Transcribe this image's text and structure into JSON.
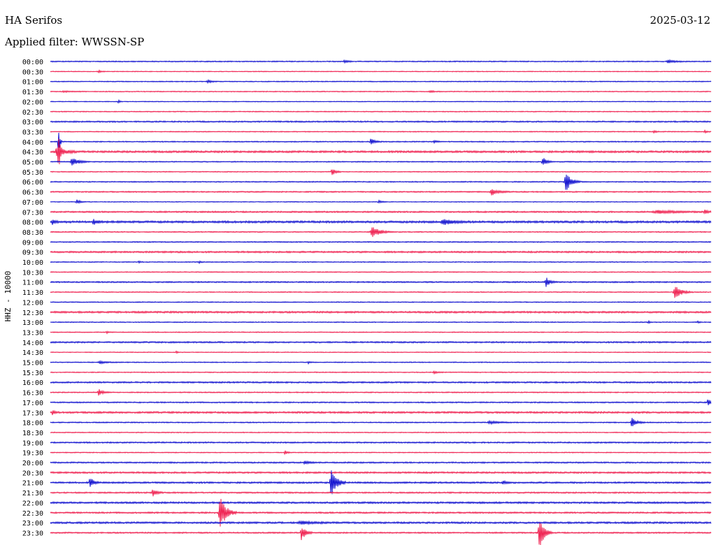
{
  "header": {
    "station": "HA Serifos",
    "date": "2025-03-12",
    "filter_label": "Applied filter: WWSSN-SP"
  },
  "chart_data": {
    "type": "line",
    "title": "HA Serifos",
    "subtitle": "Applied filter: WWSSN-SP",
    "ylabel": "HHZ - 10000",
    "xlabel": "",
    "grid": false,
    "colors": [
      "#0000cc",
      "#ee1144"
    ],
    "rows": [
      {
        "label": "00:00",
        "color": "#0000cc",
        "noise": 0.8,
        "events": [
          [
            0.445,
            2,
            0.01
          ],
          [
            0.935,
            2,
            0.02
          ]
        ]
      },
      {
        "label": "00:30",
        "color": "#ee1144",
        "noise": 0.6,
        "events": [
          [
            0.073,
            2,
            0.008
          ]
        ]
      },
      {
        "label": "01:00",
        "color": "#0000cc",
        "noise": 0.7,
        "events": [
          [
            0.238,
            2,
            0.012
          ]
        ]
      },
      {
        "label": "01:30",
        "color": "#ee1144",
        "noise": 0.7,
        "events": [
          [
            0.02,
            1,
            0.02
          ],
          [
            0.575,
            1.5,
            0.012
          ]
        ]
      },
      {
        "label": "02:00",
        "color": "#0000cc",
        "noise": 0.6,
        "events": [
          [
            0.103,
            2.5,
            0.005
          ]
        ]
      },
      {
        "label": "02:30",
        "color": "#ee1144",
        "noise": 0.7,
        "events": []
      },
      {
        "label": "03:00",
        "color": "#0000cc",
        "noise": 1.0,
        "events": []
      },
      {
        "label": "03:30",
        "color": "#ee1144",
        "noise": 0.7,
        "events": [
          [
            0.913,
            2,
            0.008
          ],
          [
            0.99,
            2,
            0.006
          ]
        ]
      },
      {
        "label": "04:00",
        "color": "#0000cc",
        "noise": 0.8,
        "events": [
          [
            0.012,
            28,
            0.004
          ],
          [
            0.485,
            5,
            0.012
          ],
          [
            0.58,
            2,
            0.01
          ]
        ]
      },
      {
        "label": "04:30",
        "color": "#ee1144",
        "noise": 1.4,
        "events": [
          [
            0.01,
            8,
            0.022
          ],
          [
            0.012,
            34,
            0.004
          ]
        ]
      },
      {
        "label": "05:00",
        "color": "#0000cc",
        "noise": 0.8,
        "events": [
          [
            0.033,
            7,
            0.018
          ],
          [
            0.745,
            7,
            0.012
          ]
        ]
      },
      {
        "label": "05:30",
        "color": "#ee1144",
        "noise": 0.7,
        "events": [
          [
            0.426,
            6,
            0.01
          ]
        ]
      },
      {
        "label": "06:00",
        "color": "#0000cc",
        "noise": 0.8,
        "events": [
          [
            0.78,
            16,
            0.016
          ]
        ]
      },
      {
        "label": "06:30",
        "color": "#ee1144",
        "noise": 0.9,
        "events": [
          [
            0.668,
            5,
            0.02
          ]
        ]
      },
      {
        "label": "07:00",
        "color": "#0000cc",
        "noise": 0.6,
        "events": [
          [
            0.04,
            3,
            0.012
          ],
          [
            0.497,
            2,
            0.01
          ]
        ]
      },
      {
        "label": "07:30",
        "color": "#ee1144",
        "noise": 1.1,
        "events": [
          [
            0.92,
            2,
            0.06
          ],
          [
            0.99,
            3,
            0.01
          ]
        ]
      },
      {
        "label": "08:00",
        "color": "#0000cc",
        "noise": 1.5,
        "events": [
          [
            0.003,
            3,
            0.008
          ],
          [
            0.065,
            4,
            0.012
          ],
          [
            0.595,
            4,
            0.03
          ]
        ]
      },
      {
        "label": "08:30",
        "color": "#ee1144",
        "noise": 0.8,
        "events": [
          [
            0.487,
            9,
            0.022
          ]
        ]
      },
      {
        "label": "09:00",
        "color": "#0000cc",
        "noise": 0.8,
        "events": []
      },
      {
        "label": "09:30",
        "color": "#ee1144",
        "noise": 1.2,
        "events": []
      },
      {
        "label": "10:00",
        "color": "#0000cc",
        "noise": 0.7,
        "events": [
          [
            0.133,
            2,
            0.005
          ],
          [
            0.225,
            2,
            0.005
          ]
        ]
      },
      {
        "label": "10:30",
        "color": "#ee1144",
        "noise": 0.7,
        "events": []
      },
      {
        "label": "11:00",
        "color": "#0000cc",
        "noise": 1.0,
        "events": [
          [
            0.75,
            7,
            0.012
          ]
        ]
      },
      {
        "label": "11:30",
        "color": "#ee1144",
        "noise": 0.7,
        "events": [
          [
            0.945,
            10,
            0.02
          ]
        ]
      },
      {
        "label": "12:00",
        "color": "#0000cc",
        "noise": 0.7,
        "events": []
      },
      {
        "label": "12:30",
        "color": "#ee1144",
        "noise": 1.3,
        "events": []
      },
      {
        "label": "13:00",
        "color": "#0000cc",
        "noise": 0.7,
        "events": [
          [
            0.905,
            2,
            0.005
          ],
          [
            0.98,
            2,
            0.005
          ]
        ]
      },
      {
        "label": "13:30",
        "color": "#ee1144",
        "noise": 0.7,
        "events": [
          [
            0.085,
            2,
            0.006
          ]
        ]
      },
      {
        "label": "14:00",
        "color": "#0000cc",
        "noise": 1.1,
        "events": []
      },
      {
        "label": "14:30",
        "color": "#ee1144",
        "noise": 0.6,
        "events": [
          [
            0.19,
            2,
            0.005
          ]
        ]
      },
      {
        "label": "15:00",
        "color": "#0000cc",
        "noise": 0.7,
        "events": [
          [
            0.075,
            2,
            0.02
          ],
          [
            0.39,
            2,
            0.006
          ]
        ]
      },
      {
        "label": "15:30",
        "color": "#ee1144",
        "noise": 0.7,
        "events": [
          [
            0.58,
            2,
            0.01
          ]
        ]
      },
      {
        "label": "16:00",
        "color": "#0000cc",
        "noise": 1.1,
        "events": []
      },
      {
        "label": "16:30",
        "color": "#ee1144",
        "noise": 0.8,
        "events": [
          [
            0.073,
            5,
            0.012
          ]
        ]
      },
      {
        "label": "17:00",
        "color": "#0000cc",
        "noise": 0.9,
        "events": [
          [
            0.995,
            5,
            0.008
          ]
        ]
      },
      {
        "label": "17:30",
        "color": "#ee1144",
        "noise": 1.3,
        "events": [
          [
            0.003,
            4,
            0.006
          ]
        ]
      },
      {
        "label": "18:00",
        "color": "#0000cc",
        "noise": 0.8,
        "events": [
          [
            0.665,
            2,
            0.03
          ],
          [
            0.88,
            7,
            0.014
          ]
        ]
      },
      {
        "label": "18:30",
        "color": "#ee1144",
        "noise": 0.7,
        "events": []
      },
      {
        "label": "19:00",
        "color": "#0000cc",
        "noise": 1.0,
        "events": []
      },
      {
        "label": "19:30",
        "color": "#ee1144",
        "noise": 0.7,
        "events": [
          [
            0.355,
            3,
            0.008
          ]
        ]
      },
      {
        "label": "20:00",
        "color": "#0000cc",
        "noise": 1.0,
        "events": [
          [
            0.385,
            3,
            0.01
          ]
        ]
      },
      {
        "label": "20:30",
        "color": "#ee1144",
        "noise": 1.2,
        "events": []
      },
      {
        "label": "21:00",
        "color": "#0000cc",
        "noise": 1.2,
        "events": [
          [
            0.06,
            8,
            0.01
          ],
          [
            0.425,
            24,
            0.016
          ],
          [
            0.685,
            2,
            0.012
          ]
        ]
      },
      {
        "label": "21:30",
        "color": "#ee1144",
        "noise": 1.0,
        "events": [
          [
            0.155,
            6,
            0.012
          ]
        ]
      },
      {
        "label": "22:00",
        "color": "#0000cc",
        "noise": 1.3,
        "events": []
      },
      {
        "label": "22:30",
        "color": "#ee1144",
        "noise": 1.1,
        "events": [
          [
            0.257,
            24,
            0.018
          ]
        ]
      },
      {
        "label": "23:00",
        "color": "#0000cc",
        "noise": 1.3,
        "events": [
          [
            0.38,
            2,
            0.04
          ]
        ]
      },
      {
        "label": "23:30",
        "color": "#ee1144",
        "noise": 1.0,
        "events": [
          [
            0.38,
            12,
            0.012
          ],
          [
            0.74,
            24,
            0.014
          ]
        ]
      }
    ]
  }
}
